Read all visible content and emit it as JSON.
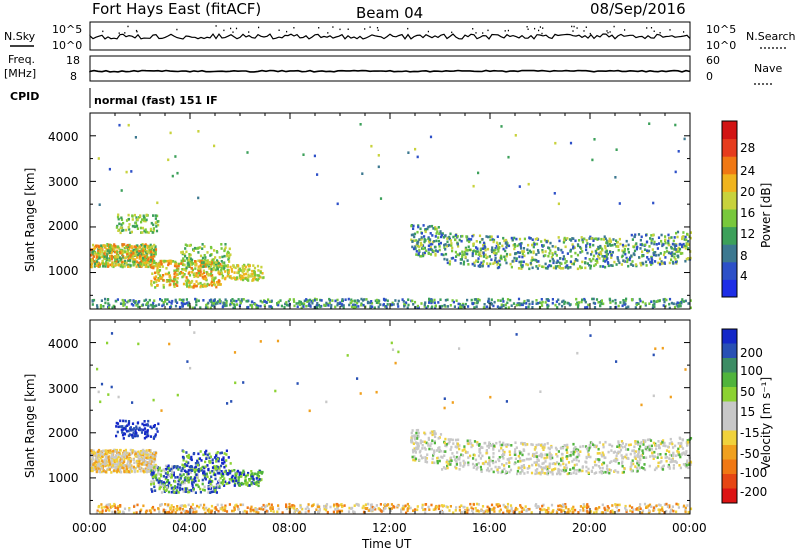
{
  "header": {
    "title": "Fort Hays East (fitACF)",
    "beam": "Beam 04",
    "date": "08/Sep/2016"
  },
  "top_strips": {
    "nsky_label": "N.Sky",
    "nsky_ticks": [
      "10^5",
      "10^0"
    ],
    "nsearch_label": "N.Search",
    "nsearch_ticks": [
      "10^5",
      "10^0"
    ],
    "freq_label_1": "Freq.",
    "freq_label_2": "[MHz]",
    "freq_ticks": [
      "18",
      "8"
    ],
    "nave_label": "Nave",
    "nave_ticks": [
      "60",
      "0"
    ],
    "cpid_label": "CPID",
    "cpid_text": "normal (fast) 151 IF"
  },
  "chart_data": [
    {
      "type": "heatmap",
      "name": "power-panel",
      "ylabel": "Slant Range [km]",
      "xlabel": "",
      "xlim": [
        "00:00",
        "24:00"
      ],
      "ylim": [
        200,
        4500
      ],
      "y_ticks": [
        "1000",
        "2000",
        "3000",
        "4000"
      ],
      "colorbar_title": "Power [dB]",
      "colorbar_ticks": [
        "4",
        "8",
        "12",
        "16",
        "20",
        "24",
        "28"
      ],
      "colorbar_colors": [
        "#1e2ee6",
        "#2d50c8",
        "#3c7890",
        "#3ca05a",
        "#78c83c",
        "#c8d23c",
        "#f0b41e",
        "#f07814",
        "#e63c1e",
        "#d21414"
      ]
    },
    {
      "type": "heatmap",
      "name": "velocity-panel",
      "ylabel": "Slant Range [km]",
      "xlabel": "Time UT",
      "xlim": [
        "00:00",
        "24:00"
      ],
      "ylim": [
        200,
        4500
      ],
      "y_ticks": [
        "1000",
        "2000",
        "3000",
        "4000"
      ],
      "x_ticks": [
        "00:00",
        "04:00",
        "08:00",
        "12:00",
        "16:00",
        "20:00",
        "00:00"
      ],
      "colorbar_title": "Velocity [m s⁻¹]",
      "colorbar_ticks": [
        "200",
        "100",
        "50",
        "15",
        "-15",
        "-50",
        "-100",
        "-200"
      ],
      "colorbar_colors": [
        "#1428c8",
        "#2850b4",
        "#3c8c64",
        "#50b43c",
        "#8cd232",
        "#c8c8c8",
        "#c8c8c8",
        "#f0d23c",
        "#f0a01e",
        "#f07814",
        "#e64614",
        "#dc1414"
      ]
    }
  ]
}
